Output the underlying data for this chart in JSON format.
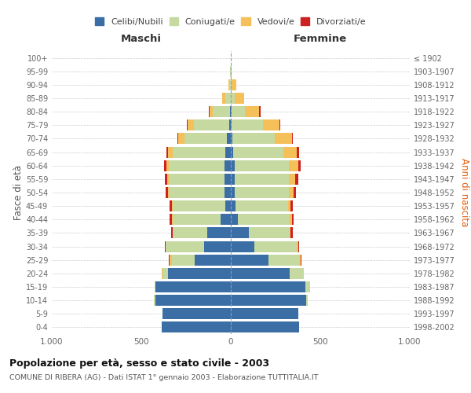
{
  "age_groups": [
    "0-4",
    "5-9",
    "10-14",
    "15-19",
    "20-24",
    "25-29",
    "30-34",
    "35-39",
    "40-44",
    "45-49",
    "50-54",
    "55-59",
    "60-64",
    "65-69",
    "70-74",
    "75-79",
    "80-84",
    "85-89",
    "90-94",
    "95-99",
    "100+"
  ],
  "birth_years": [
    "1998-2002",
    "1993-1997",
    "1988-1992",
    "1983-1987",
    "1978-1982",
    "1973-1977",
    "1968-1972",
    "1963-1967",
    "1958-1962",
    "1953-1957",
    "1948-1952",
    "1943-1947",
    "1938-1942",
    "1933-1937",
    "1928-1932",
    "1923-1927",
    "1918-1922",
    "1913-1917",
    "1908-1912",
    "1903-1907",
    "≤ 1902"
  ],
  "males": {
    "celibi": [
      385,
      380,
      420,
      420,
      350,
      200,
      150,
      130,
      55,
      30,
      35,
      35,
      35,
      30,
      20,
      10,
      5,
      0,
      0,
      0,
      0
    ],
    "coniugati": [
      0,
      0,
      10,
      5,
      30,
      130,
      215,
      195,
      270,
      295,
      310,
      310,
      310,
      295,
      240,
      195,
      95,
      30,
      10,
      3,
      0
    ],
    "vedovi": [
      0,
      0,
      0,
      0,
      5,
      10,
      0,
      0,
      5,
      5,
      5,
      10,
      15,
      25,
      35,
      35,
      20,
      20,
      5,
      0,
      0
    ],
    "divorziati": [
      0,
      0,
      0,
      0,
      0,
      5,
      5,
      10,
      10,
      10,
      15,
      15,
      15,
      10,
      5,
      5,
      5,
      0,
      0,
      0,
      0
    ]
  },
  "females": {
    "nubili": [
      380,
      375,
      420,
      415,
      330,
      210,
      130,
      100,
      40,
      25,
      20,
      20,
      20,
      15,
      10,
      5,
      5,
      0,
      0,
      0,
      0
    ],
    "coniugate": [
      0,
      0,
      10,
      30,
      80,
      175,
      240,
      230,
      290,
      295,
      305,
      305,
      305,
      280,
      235,
      175,
      75,
      20,
      5,
      3,
      0
    ],
    "vedove": [
      0,
      0,
      0,
      0,
      0,
      5,
      5,
      5,
      10,
      15,
      25,
      35,
      50,
      75,
      95,
      90,
      80,
      55,
      25,
      0,
      0
    ],
    "divorziate": [
      0,
      0,
      0,
      0,
      0,
      5,
      5,
      10,
      10,
      10,
      15,
      15,
      15,
      10,
      5,
      5,
      5,
      0,
      0,
      0,
      0
    ]
  },
  "colors": {
    "celibi_nubili": "#3a6ea5",
    "coniugati": "#c5d9a0",
    "vedovi": "#f5bf5a",
    "divorziati": "#cc2222"
  },
  "xlim": 1000,
  "title": "Popolazione per età, sesso e stato civile - 2003",
  "subtitle": "COMUNE DI RIBERA (AG) - Dati ISTAT 1° gennaio 2003 - Elaborazione TUTTITALIA.IT",
  "ylabel_left": "Fasce di età",
  "ylabel_right": "Anni di nascita",
  "legend_labels": [
    "Celibi/Nubili",
    "Coniugati/e",
    "Vedovi/e",
    "Divorziati/e"
  ],
  "bg_color": "#ffffff",
  "grid_color": "#cccccc"
}
